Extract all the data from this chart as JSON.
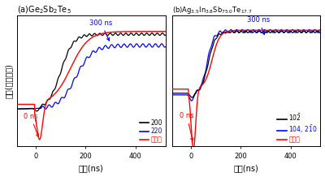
{
  "fig_width": 4.0,
  "fig_height": 2.18,
  "dpi": 100,
  "background": "#ffffff",
  "left_title": "(a)Ge$_2$Sb$_2$Te$_5$",
  "right_title": "(b)Ag$_{3.5}$In$_{3.8}$Sb$_{75.0}$Te$_{17.7}$",
  "ylabel": "強度(任意単位)",
  "xlabel": "時間(ns)",
  "xlim": [
    -75,
    520
  ],
  "xticks": [
    0,
    200,
    400
  ],
  "colors": {
    "black": "#000000",
    "blue": "#0000ff",
    "red": "#ff0000"
  },
  "annot_0ns_color": "#ff0000",
  "annot_300ns_color": "#0000ff",
  "ylim_left": [
    -0.35,
    1.05
  ],
  "ylim_right": [
    -0.55,
    1.05
  ]
}
